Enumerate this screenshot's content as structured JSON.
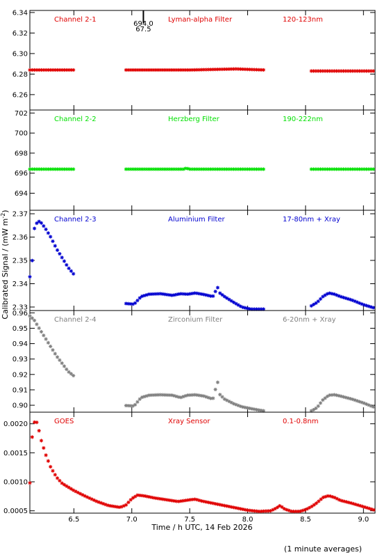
{
  "chart_data": {
    "type": "scatter",
    "y_axis_label": "Calibrated Signal / (mW m",
    "y_axis_label_sup": "-2",
    "y_axis_label_end": ")",
    "x_axis_label": "Time / h UTC, 14 Feb 2026",
    "footnote": "(1 minute averages)",
    "xlim": [
      6.12,
      9.1
    ],
    "x_ticks": [
      6.5,
      7.0,
      7.5,
      8.0,
      8.5,
      9.0
    ],
    "x_tick_labels": [
      "6.5",
      "7.0",
      "7.5",
      "8.0",
      "8.5",
      "9.0"
    ],
    "marker_note": {
      "x": 7.1,
      "line1": "694.0",
      "line2": "67.5"
    },
    "panels": [
      {
        "channel": "Channel 2-1",
        "filter": "Lyman-alpha Filter",
        "band": "120-123nm",
        "color": "#e00000",
        "ylim": [
          6.245,
          6.342
        ],
        "y_ticks": [
          6.26,
          6.28,
          6.3,
          6.32,
          6.34
        ],
        "y_tick_labels": [
          "6.26",
          "6.28",
          "6.30",
          "6.32",
          "6.34"
        ],
        "series": [
          {
            "x": [
              6.12,
              6.5
            ],
            "y": [
              6.284,
              6.284
            ]
          },
          {
            "x": [
              6.95,
              7.5,
              7.9,
              8.15
            ],
            "y": [
              6.284,
              6.284,
              6.285,
              6.284
            ]
          },
          {
            "x": [
              8.55,
              9.1
            ],
            "y": [
              6.283,
              6.283
            ]
          }
        ]
      },
      {
        "channel": "Channel 2-2",
        "filter": "Herzberg Filter",
        "band": "190-222nm",
        "color": "#00e000",
        "ylim": [
          692.3,
          702.3
        ],
        "y_ticks": [
          694,
          696,
          698,
          700,
          702
        ],
        "y_tick_labels": [
          "694",
          "696",
          "698",
          "700",
          "702"
        ],
        "series": [
          {
            "x": [
              6.12,
              6.5
            ],
            "y": [
              696.4,
              696.4
            ]
          },
          {
            "x": [
              6.95,
              7.45,
              7.47,
              7.5,
              8.15
            ],
            "y": [
              696.4,
              696.4,
              696.5,
              696.4,
              696.4
            ]
          },
          {
            "x": [
              8.55,
              9.1
            ],
            "y": [
              696.4,
              696.4
            ]
          }
        ]
      },
      {
        "channel": "Channel 2-3",
        "filter": "Aluminium Filter",
        "band": "17-80nm + Xray",
        "color": "#0000d0",
        "ylim": [
          2.3285,
          2.3715
        ],
        "y_ticks": [
          2.33,
          2.34,
          2.35,
          2.36,
          2.37
        ],
        "y_tick_labels": [
          "2.33",
          "2.34",
          "2.35",
          "2.36",
          "2.37"
        ],
        "series": [
          {
            "x": [
              6.12,
              6.14,
              6.16,
              6.19,
              6.22,
              6.25,
              6.3,
              6.35,
              6.4,
              6.45,
              6.5
            ],
            "y": [
              2.343,
              2.35,
              2.364,
              2.367,
              2.366,
              2.364,
              2.36,
              2.355,
              2.351,
              2.347,
              2.344
            ]
          },
          {
            "x": [
              6.95,
              7.02,
              7.08,
              7.15,
              7.25,
              7.35,
              7.42,
              7.48,
              7.55,
              7.62,
              7.7,
              7.74,
              7.76,
              7.8,
              7.88,
              7.95,
              8.05,
              8.15
            ],
            "y": [
              2.3315,
              2.3312,
              2.3345,
              2.3355,
              2.3357,
              2.335,
              2.3357,
              2.3355,
              2.336,
              2.3354,
              2.3345,
              2.3385,
              2.336,
              2.3345,
              2.332,
              2.33,
              2.3288,
              2.3282
            ]
          },
          {
            "x": [
              8.55,
              8.6,
              8.65,
              8.7,
              8.75,
              8.8,
              8.9,
              9.0,
              9.1
            ],
            "y": [
              2.3305,
              2.332,
              2.3345,
              2.336,
              2.3355,
              2.3345,
              2.333,
              2.331,
              2.3295
            ]
          }
        ]
      },
      {
        "channel": "Channel 2-4",
        "filter": "Zirconium Filter",
        "band": "6-20nm + Xray",
        "color": "#808080",
        "ylim": [
          0.8955,
          0.9615
        ],
        "y_ticks": [
          0.9,
          0.91,
          0.92,
          0.93,
          0.94,
          0.95,
          0.96
        ],
        "y_tick_labels": [
          "0.90",
          "0.91",
          "0.92",
          "0.93",
          "0.94",
          "0.95",
          "0.96"
        ],
        "series": [
          {
            "x": [
              6.12,
              6.16,
              6.2,
              6.25,
              6.3,
              6.35,
              6.4,
              6.45,
              6.5
            ],
            "y": [
              0.958,
              0.955,
              0.95,
              0.944,
              0.938,
              0.932,
              0.927,
              0.922,
              0.919
            ]
          },
          {
            "x": [
              6.95,
              7.02,
              7.08,
              7.15,
              7.25,
              7.35,
              7.42,
              7.48,
              7.55,
              7.62,
              7.7,
              7.74,
              7.76,
              7.8,
              7.88,
              7.95,
              8.05,
              8.15
            ],
            "y": [
              0.8998,
              0.8995,
              0.905,
              0.9065,
              0.9068,
              0.9065,
              0.905,
              0.9065,
              0.9068,
              0.906,
              0.904,
              0.9155,
              0.907,
              0.904,
              0.901,
              0.899,
              0.8975,
              0.8962
            ]
          },
          {
            "x": [
              8.55,
              8.6,
              8.65,
              8.7,
              8.75,
              8.8,
              8.9,
              9.0,
              9.1
            ],
            "y": [
              0.8962,
              0.8985,
              0.9035,
              0.9065,
              0.9068,
              0.906,
              0.904,
              0.9015,
              0.8985
            ]
          }
        ]
      },
      {
        "channel": "GOES",
        "filter": "Xray Sensor",
        "band": "0.1-0.8nm",
        "color": "#e00000",
        "ylim": [
          0.00046,
          0.0022
        ],
        "y_ticks": [
          0.0005,
          0.001,
          0.0015,
          0.002
        ],
        "y_tick_labels": [
          "0.0005",
          "0.0010",
          "0.0015",
          "0.0020"
        ],
        "series": [
          {
            "x": [
              6.12,
              6.13,
              6.14,
              6.15,
              6.17,
              6.19,
              6.22,
              6.26,
              6.3,
              6.35,
              6.4,
              6.5,
              6.6,
              6.7,
              6.8,
              6.9,
              6.95,
              7.0,
              7.05,
              7.1,
              7.2,
              7.3,
              7.4,
              7.5,
              7.55,
              7.6,
              7.7,
              7.8,
              7.9,
              8.0,
              8.1,
              8.2,
              8.25,
              8.28,
              8.32,
              8.38,
              8.45,
              8.5,
              8.55,
              8.6,
              8.65,
              8.7,
              8.75,
              8.8,
              8.9,
              9.0,
              9.1
            ],
            "y": [
              0.00098,
              0.00135,
              0.00178,
              0.00198,
              0.00208,
              0.00196,
              0.0017,
              0.00145,
              0.00125,
              0.00108,
              0.00097,
              0.00085,
              0.00075,
              0.00066,
              0.00059,
              0.00056,
              0.0006,
              0.00071,
              0.00077,
              0.00076,
              0.00072,
              0.00069,
              0.00066,
              0.00069,
              0.0007,
              0.00067,
              0.00063,
              0.00059,
              0.00055,
              0.00051,
              0.00049,
              0.0005,
              0.00055,
              0.00059,
              0.00053,
              0.00049,
              0.00049,
              0.00052,
              0.00057,
              0.00064,
              0.00073,
              0.00076,
              0.00073,
              0.00068,
              0.00063,
              0.00057,
              0.00051
            ]
          }
        ]
      }
    ]
  }
}
